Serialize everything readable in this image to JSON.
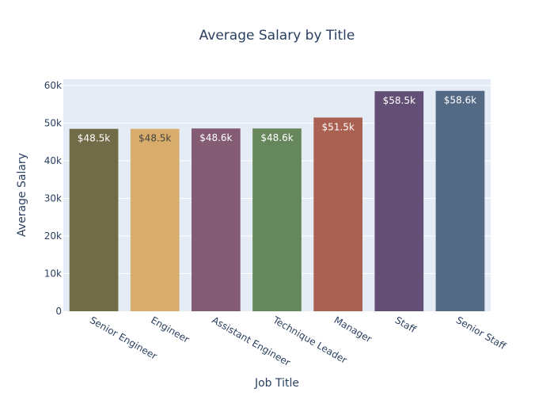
{
  "chart_data": {
    "type": "bar",
    "title": "Average Salary by Title",
    "xlabel": "Job Title",
    "ylabel": "Average Salary",
    "categories": [
      "Senior Engineer",
      "Engineer",
      "Assistant Engineer",
      "Technique Leader",
      "Manager",
      "Staff",
      "Senior Staff"
    ],
    "values": [
      48500,
      48500,
      48600,
      48600,
      51500,
      58500,
      58600
    ],
    "data_labels": [
      "$48.5k",
      "$48.5k",
      "$48.6k",
      "$48.6k",
      "$51.5k",
      "$58.5k",
      "$58.6k"
    ],
    "colors": [
      "#716c47",
      "#d8ac6a",
      "#835b73",
      "#66875c",
      "#ab6152",
      "#634f76",
      "#546984"
    ],
    "label_colors": [
      "#ffffff",
      "#444444",
      "#ffffff",
      "#ffffff",
      "#ffffff",
      "#ffffff",
      "#ffffff"
    ],
    "yticks": [
      0,
      10000,
      20000,
      30000,
      40000,
      50000,
      60000
    ],
    "ytick_labels": [
      "0",
      "10k",
      "20k",
      "30k",
      "40k",
      "50k",
      "60k"
    ],
    "ylim": [
      0,
      61700
    ],
    "grid": true,
    "plot_background": "#e5ecf6",
    "x_tick_angle": 30
  }
}
